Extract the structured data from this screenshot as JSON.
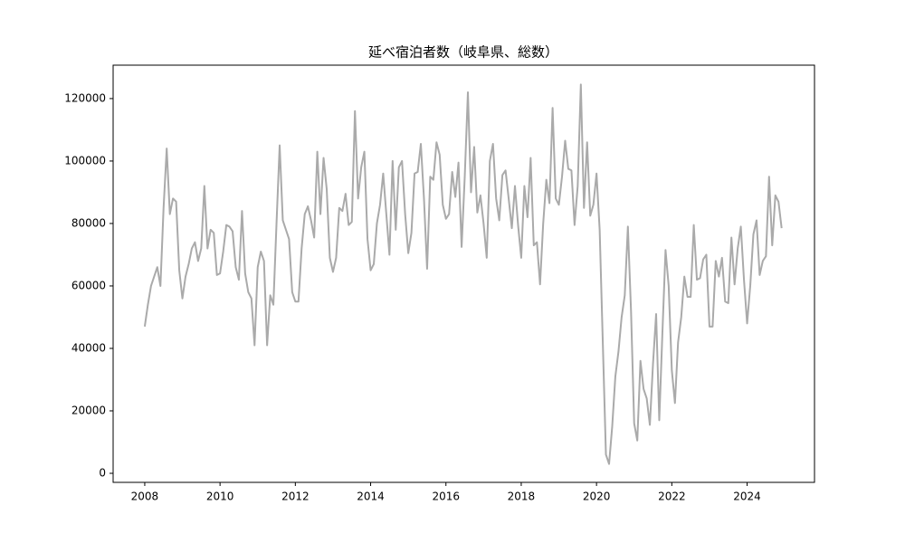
{
  "chart_data": {
    "type": "line",
    "title": "延べ宿泊者数（岐阜県、総数）",
    "color": "#aaaaaa",
    "x": [
      "2008-01",
      "2008-02",
      "2008-03",
      "2008-04",
      "2008-05",
      "2008-06",
      "2008-07",
      "2008-08",
      "2008-09",
      "2008-10",
      "2008-11",
      "2008-12",
      "2009-01",
      "2009-02",
      "2009-03",
      "2009-04",
      "2009-05",
      "2009-06",
      "2009-07",
      "2009-08",
      "2009-09",
      "2009-10",
      "2009-11",
      "2009-12",
      "2010-01",
      "2010-02",
      "2010-03",
      "2010-04",
      "2010-05",
      "2010-06",
      "2010-07",
      "2010-08",
      "2010-09",
      "2010-10",
      "2010-11",
      "2010-12",
      "2011-01",
      "2011-02",
      "2011-03",
      "2011-04",
      "2011-05",
      "2011-06",
      "2011-07",
      "2011-08",
      "2011-09",
      "2011-10",
      "2011-11",
      "2011-12",
      "2012-01",
      "2012-02",
      "2012-03",
      "2012-04",
      "2012-05",
      "2012-06",
      "2012-07",
      "2012-08",
      "2012-09",
      "2012-10",
      "2012-11",
      "2012-12",
      "2013-01",
      "2013-02",
      "2013-03",
      "2013-04",
      "2013-05",
      "2013-06",
      "2013-07",
      "2013-08",
      "2013-09",
      "2013-10",
      "2013-11",
      "2013-12",
      "2014-01",
      "2014-02",
      "2014-03",
      "2014-04",
      "2014-05",
      "2014-06",
      "2014-07",
      "2014-08",
      "2014-09",
      "2014-10",
      "2014-11",
      "2014-12",
      "2015-01",
      "2015-02",
      "2015-03",
      "2015-04",
      "2015-05",
      "2015-06",
      "2015-07",
      "2015-08",
      "2015-09",
      "2015-10",
      "2015-11",
      "2015-12",
      "2016-01",
      "2016-02",
      "2016-03",
      "2016-04",
      "2016-05",
      "2016-06",
      "2016-07",
      "2016-08",
      "2016-09",
      "2016-10",
      "2016-11",
      "2016-12",
      "2017-01",
      "2017-02",
      "2017-03",
      "2017-04",
      "2017-05",
      "2017-06",
      "2017-07",
      "2017-08",
      "2017-09",
      "2017-10",
      "2017-11",
      "2017-12",
      "2018-01",
      "2018-02",
      "2018-03",
      "2018-04",
      "2018-05",
      "2018-06",
      "2018-07",
      "2018-08",
      "2018-09",
      "2018-10",
      "2018-11",
      "2018-12",
      "2019-01",
      "2019-02",
      "2019-03",
      "2019-04",
      "2019-05",
      "2019-06",
      "2019-07",
      "2019-08",
      "2019-09",
      "2019-10",
      "2019-11",
      "2019-12",
      "2020-01",
      "2020-02",
      "2020-03",
      "2020-04",
      "2020-05",
      "2020-06",
      "2020-07",
      "2020-08",
      "2020-09",
      "2020-10",
      "2020-11",
      "2020-12",
      "2021-01",
      "2021-02",
      "2021-03",
      "2021-04",
      "2021-05",
      "2021-06",
      "2021-07",
      "2021-08",
      "2021-09",
      "2021-10",
      "2021-11",
      "2021-12",
      "2022-01",
      "2022-02",
      "2022-03",
      "2022-04",
      "2022-05",
      "2022-06",
      "2022-07",
      "2022-08",
      "2022-09",
      "2022-10",
      "2022-11",
      "2022-12",
      "2023-01",
      "2023-02",
      "2023-03",
      "2023-04",
      "2023-05",
      "2023-06",
      "2023-07",
      "2023-08",
      "2023-09",
      "2023-10",
      "2023-11",
      "2023-12",
      "2024-01",
      "2024-02",
      "2024-03",
      "2024-04",
      "2024-05",
      "2024-06",
      "2024-07",
      "2024-08",
      "2024-09",
      "2024-10",
      "2024-11",
      "2024-12"
    ],
    "values": [
      47000,
      54000,
      60000,
      63000,
      66000,
      60000,
      85000,
      104000,
      83000,
      88000,
      87000,
      65000,
      56000,
      63000,
      67000,
      72000,
      74000,
      68000,
      72000,
      92000,
      72000,
      78000,
      77000,
      63500,
      64000,
      71000,
      79500,
      79000,
      77500,
      66000,
      62000,
      84000,
      64000,
      58000,
      56000,
      41000,
      66000,
      71000,
      68000,
      41000,
      57000,
      54000,
      80000,
      105000,
      81000,
      78000,
      75000,
      58000,
      55000,
      55000,
      72000,
      83000,
      85500,
      81000,
      75500,
      103000,
      83000,
      101000,
      91000,
      69000,
      64500,
      69000,
      85000,
      84000,
      89500,
      79500,
      80500,
      116000,
      88000,
      98000,
      103000,
      75000,
      65000,
      67000,
      80000,
      86000,
      96000,
      83000,
      70000,
      100000,
      78000,
      98000,
      100000,
      83000,
      70500,
      77000,
      96000,
      96500,
      105500,
      88000,
      65500,
      95000,
      94000,
      106000,
      102000,
      86000,
      81500,
      83000,
      96500,
      88500,
      99500,
      72500,
      95000,
      122000,
      90000,
      104500,
      83500,
      89000,
      80000,
      69000,
      100000,
      105500,
      88000,
      81000,
      95500,
      97000,
      88000,
      78500,
      92000,
      79500,
      69000,
      92000,
      82000,
      101000,
      73000,
      74000,
      60500,
      80000,
      94000,
      86500,
      117000,
      88000,
      86000,
      95000,
      106500,
      97500,
      97000,
      79500,
      92000,
      124500,
      85000,
      106000,
      82500,
      86000,
      96000,
      78000,
      42000,
      6000,
      3000,
      15000,
      31000,
      39000,
      50000,
      57000,
      79000,
      52000,
      16000,
      10500,
      36000,
      27000,
      24000,
      15500,
      35000,
      51000,
      17000,
      45000,
      71500,
      60000,
      33000,
      22500,
      42000,
      50000,
      63000,
      56500,
      56500,
      79500,
      62000,
      62500,
      68500,
      70000,
      47000,
      47000,
      68000,
      63000,
      69000,
      55000,
      54500,
      75500,
      60500,
      72000,
      79000,
      62000,
      48000,
      60000,
      76500,
      81000,
      63500,
      68000,
      69500,
      95000,
      73000,
      89000,
      87000,
      78500
    ],
    "xlim": [
      2007.16,
      2025.79
    ],
    "xticks": [
      2008,
      2010,
      2012,
      2014,
      2016,
      2018,
      2020,
      2022,
      2024
    ],
    "ylim": [
      -2900,
      130700
    ],
    "yticks": [
      0,
      20000,
      40000,
      60000,
      80000,
      100000,
      120000
    ]
  }
}
